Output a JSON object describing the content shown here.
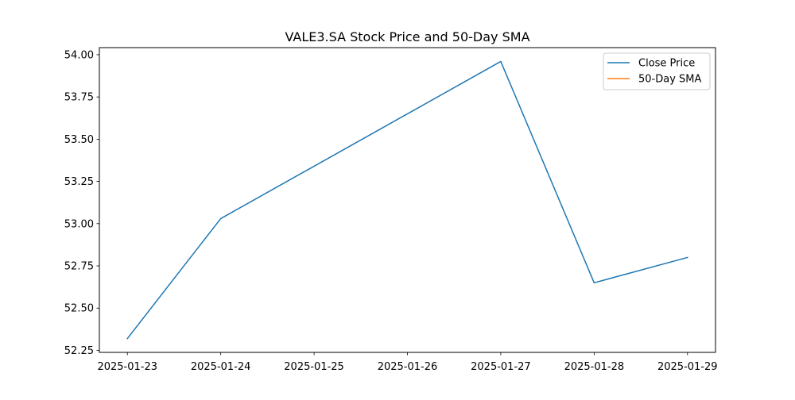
{
  "chart_data": {
    "type": "line",
    "title": "VALE3.SA Stock Price and 50-Day SMA",
    "xlabel": "",
    "ylabel": "",
    "x": [
      "2025-01-23",
      "2025-01-24",
      "2025-01-25",
      "2025-01-26",
      "2025-01-27",
      "2025-01-28",
      "2025-01-29"
    ],
    "x_ticks": [
      "2025-01-23",
      "2025-01-24",
      "2025-01-25",
      "2025-01-26",
      "2025-01-27",
      "2025-01-28",
      "2025-01-29"
    ],
    "y_ticks": [
      "52.25",
      "52.50",
      "52.75",
      "53.00",
      "53.25",
      "53.50",
      "53.75",
      "54.00"
    ],
    "xlim": [
      "2025-01-22T16:48",
      "2025-01-29T07:12"
    ],
    "ylim": [
      52.238,
      54.042
    ],
    "grid": false,
    "legend_position": "top-right",
    "series": [
      {
        "name": "Close Price",
        "color": "#1f77b4",
        "points": [
          {
            "x": "2025-01-23",
            "y": 52.32
          },
          {
            "x": "2025-01-24",
            "y": 53.03
          },
          {
            "x": "2025-01-27",
            "y": 53.96
          },
          {
            "x": "2025-01-28",
            "y": 52.65
          },
          {
            "x": "2025-01-29",
            "y": 52.8
          }
        ]
      },
      {
        "name": "50-Day SMA",
        "color": "#ff7f0e",
        "points": []
      }
    ]
  }
}
